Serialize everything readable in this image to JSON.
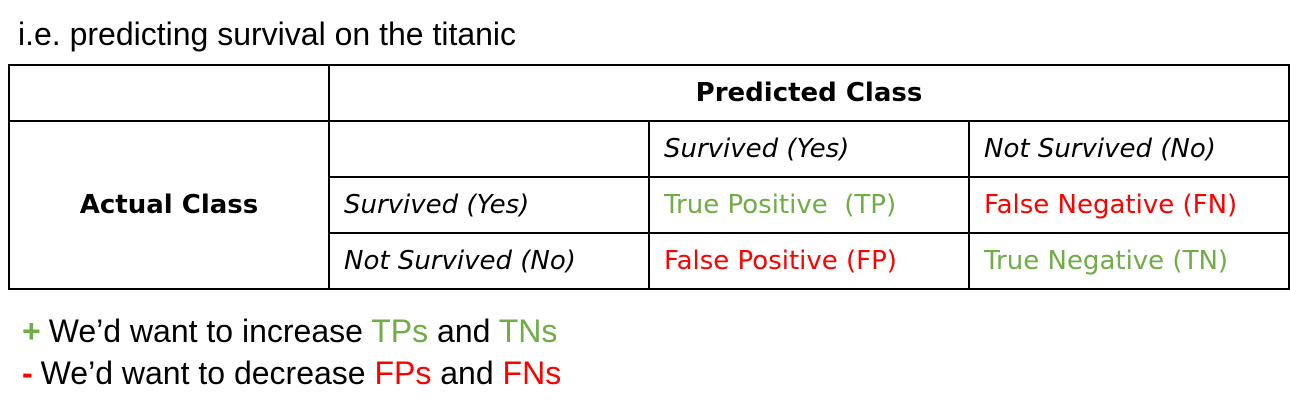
{
  "title": "i.e. predicting survival on the titanic",
  "table": {
    "predicted_header": "Predicted Class",
    "actual_header": "Actual Class",
    "pred_yes": "Survived (Yes)",
    "pred_no": "Not Survived (No)",
    "act_yes": "Survived (Yes)",
    "act_no": "Not Survived (No)",
    "tp": "True Positive  (TP)",
    "fn": "False Negative (FN)",
    "fp": "False Positive (FP)",
    "tn": "True Negative (TN)"
  },
  "notes": {
    "line1": {
      "sign": "+",
      "text_a": "We’d want to increase ",
      "term1": "TPs",
      "text_b": " and ",
      "term2": "TNs"
    },
    "line2": {
      "sign": "-",
      "text_a": "We’d want to decrease ",
      "term1": "FPs",
      "text_b": " and ",
      "term2": "FNs"
    }
  },
  "colors": {
    "positive": "#70ad47",
    "negative": "#ff0000"
  }
}
